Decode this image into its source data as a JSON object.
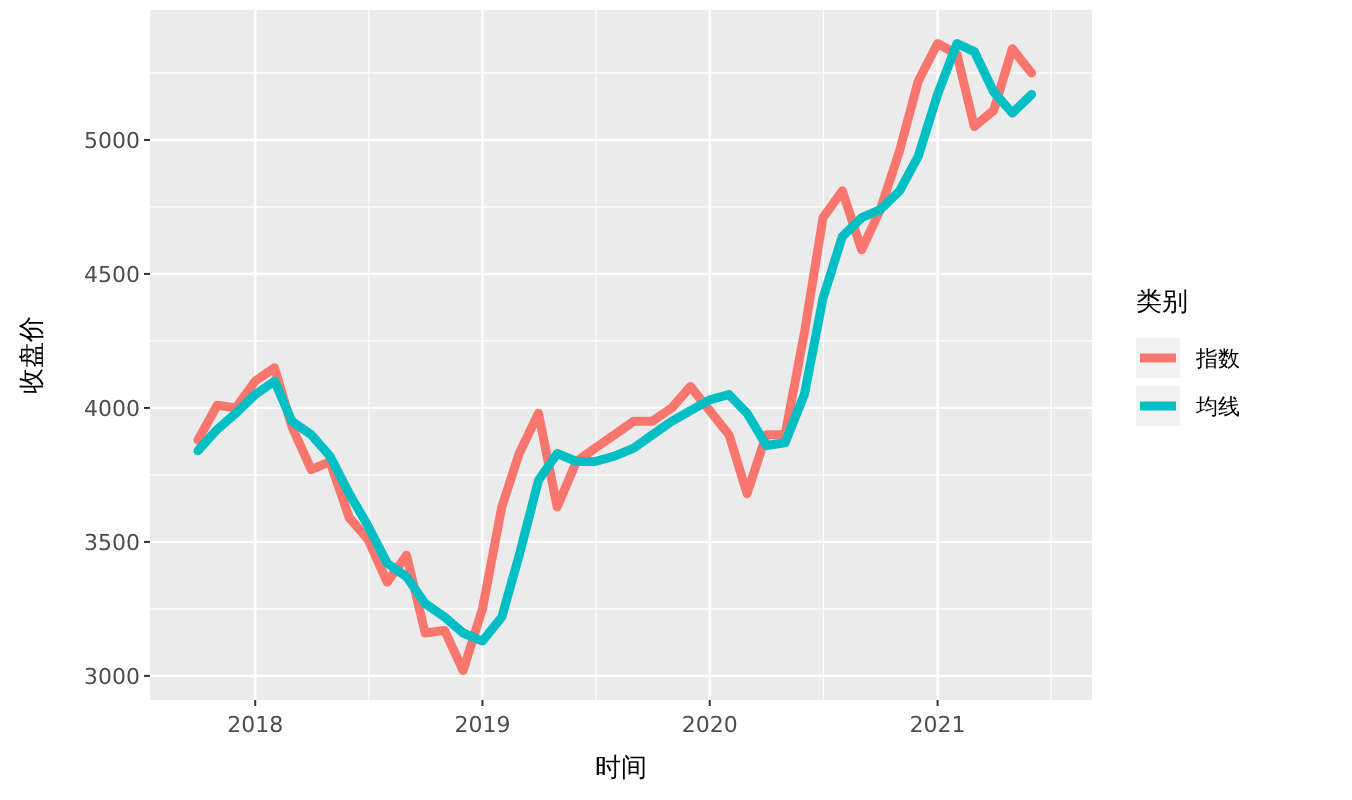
{
  "chart_data": {
    "type": "line",
    "xlabel": "时间",
    "ylabel": "收盘价",
    "legend_title": "类别",
    "legend": "right",
    "grid": true,
    "x": [
      "2017-10",
      "2017-11",
      "2017-12",
      "2018-01",
      "2018-02",
      "2018-03",
      "2018-04",
      "2018-05",
      "2018-06",
      "2018-07",
      "2018-08",
      "2018-09",
      "2018-10",
      "2018-11",
      "2018-12",
      "2019-01",
      "2019-02",
      "2019-03",
      "2019-04",
      "2019-05",
      "2019-06",
      "2019-07",
      "2019-08",
      "2019-09",
      "2019-10",
      "2019-11",
      "2019-12",
      "2020-01",
      "2020-02",
      "2020-03",
      "2020-04",
      "2020-05",
      "2020-06",
      "2020-07",
      "2020-08",
      "2020-09",
      "2020-10",
      "2020-11",
      "2020-12",
      "2021-01",
      "2021-02",
      "2021-03",
      "2021-04",
      "2021-05",
      "2021-06"
    ],
    "series": [
      {
        "name": "指数",
        "color": "#f8766d",
        "values": [
          3880,
          4010,
          4000,
          4100,
          4150,
          3930,
          3770,
          3800,
          3590,
          3510,
          3350,
          3450,
          3160,
          3170,
          3020,
          3250,
          3630,
          3830,
          3980,
          3630,
          3800,
          3850,
          3900,
          3950,
          3950,
          4000,
          4080,
          3990,
          3900,
          3680,
          3900,
          3900,
          4280,
          4710,
          4810,
          4590,
          4740,
          4960,
          5220,
          5360,
          5320,
          5050,
          5110,
          5340,
          5250
        ]
      },
      {
        "name": "均线",
        "color": "#00bfc4",
        "values": [
          3840,
          3920,
          3980,
          4050,
          4100,
          3950,
          3900,
          3820,
          3680,
          3560,
          3420,
          3370,
          3270,
          3220,
          3160,
          3130,
          3220,
          3450,
          3730,
          3830,
          3800,
          3800,
          3820,
          3850,
          3900,
          3950,
          3990,
          4030,
          4050,
          3980,
          3860,
          3870,
          4050,
          4410,
          4640,
          4710,
          4740,
          4810,
          4940,
          5170,
          5360,
          5330,
          5180,
          5100,
          5170
        ]
      }
    ],
    "xlim": [
      "2017-07-16",
      "2021-09-06"
    ],
    "xticks": [
      {
        "value": "2018-01-01",
        "label": "2018"
      },
      {
        "value": "2019-01-01",
        "label": "2019"
      },
      {
        "value": "2020-01-01",
        "label": "2020"
      },
      {
        "value": "2021-01-01",
        "label": "2021"
      }
    ],
    "ylim": [
      2910,
      5485
    ],
    "yticks": [
      3000,
      3500,
      4000,
      4500,
      5000
    ]
  }
}
